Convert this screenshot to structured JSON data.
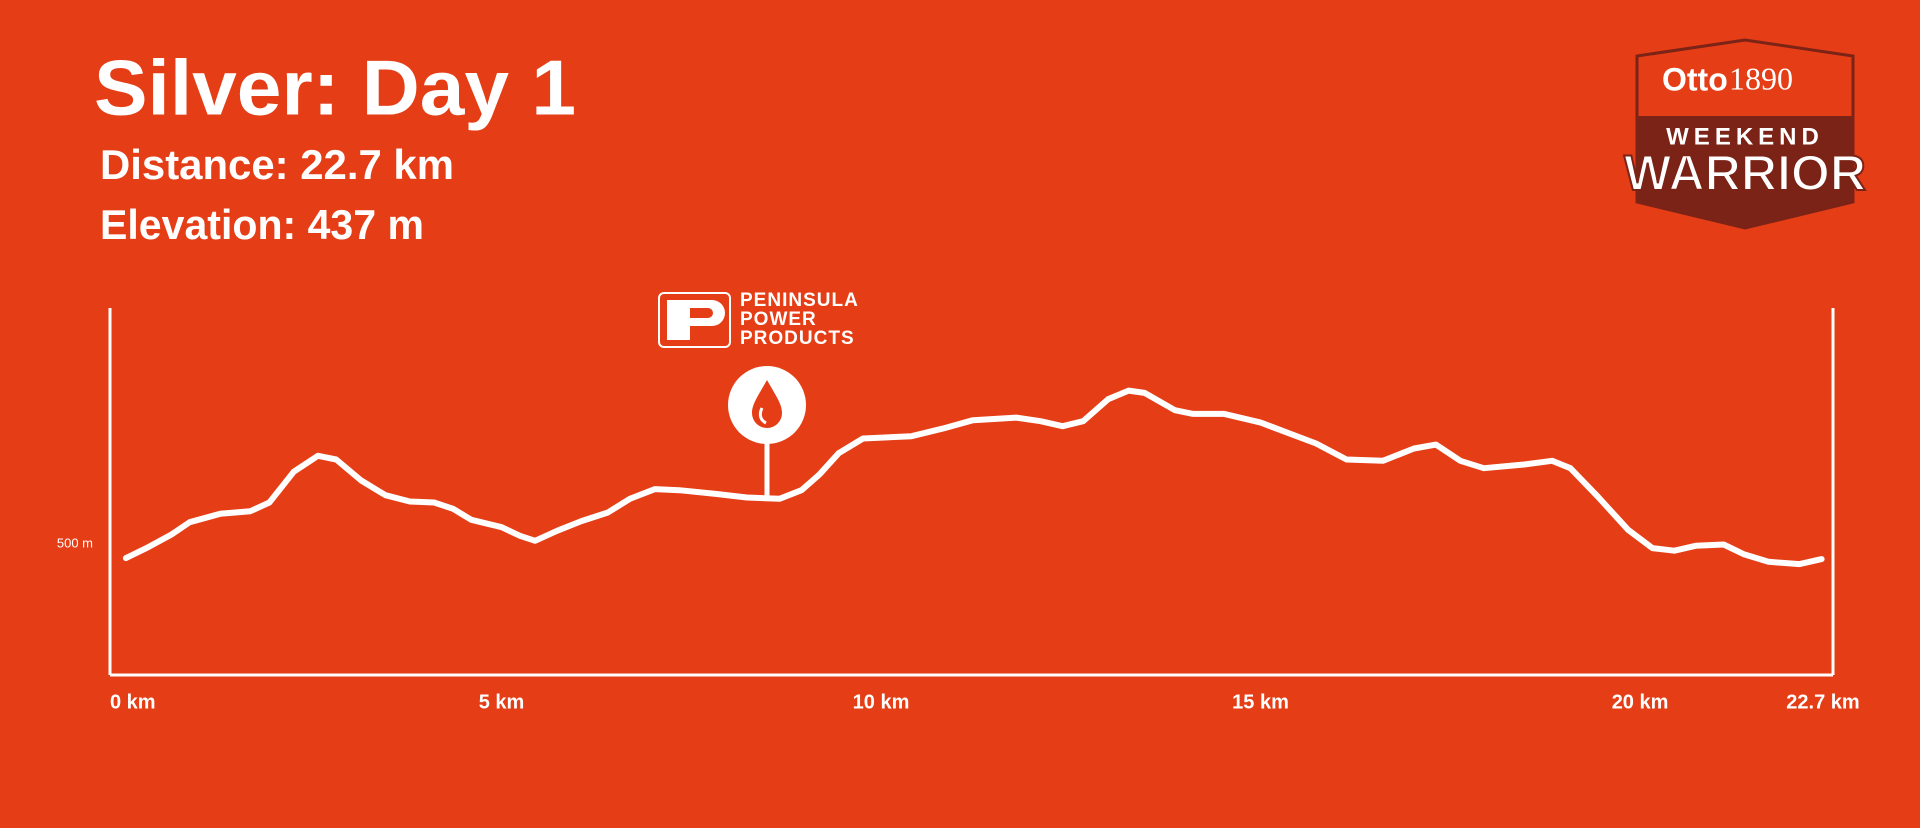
{
  "chart_data": {
    "type": "line",
    "title": "Silver: Day 1",
    "annotations": [
      "Distance: 22.7 km",
      "Elevation: 437 m"
    ],
    "x": [
      0.21,
      0.48,
      0.81,
      1.05,
      1.45,
      1.85,
      2.1,
      2.42,
      2.74,
      2.98,
      3.31,
      3.63,
      3.95,
      4.27,
      4.52,
      4.76,
      5.16,
      5.4,
      5.6,
      5.89,
      6.21,
      6.56,
      6.85,
      7.18,
      7.5,
      7.98,
      8.39,
      8.82,
      9.11,
      9.35,
      9.6,
      9.92,
      10.56,
      10.97,
      11.37,
      11.94,
      12.26,
      12.55,
      12.82,
      13.15,
      13.42,
      13.63,
      14.03,
      14.27,
      14.68,
      15.16,
      15.89,
      16.29,
      16.77,
      17.18,
      17.47,
      17.79,
      18.1,
      18.63,
      19.0,
      19.24,
      19.6,
      20.0,
      20.32,
      20.61,
      20.89,
      21.26,
      21.53,
      21.85,
      22.26,
      22.55
    ],
    "series": [
      {
        "color": "#ffffff",
        "values": [
          446,
          484,
          536,
          583,
          615,
          625,
          658,
          775,
          836,
          822,
          742,
          686,
          662,
          658,
          634,
          592,
          564,
          531,
          512,
          550,
          587,
          620,
          672,
          709,
          705,
          691,
          677,
          672,
          705,
          766,
          846,
          902,
          911,
          940,
          972,
          982,
          968,
          949,
          968,
          1052,
          1085,
          1076,
          1010,
          996,
          996,
          963,
          883,
          822,
          817,
          864,
          879,
          817,
          789,
          803,
          817,
          789,
          681,
          554,
          484,
          474,
          493,
          498,
          460,
          432,
          423,
          442
        ]
      }
    ],
    "xlim": [
      0,
      22.7
    ],
    "xticks": [
      {
        "value": 0,
        "label": "0 km"
      },
      {
        "value": 5,
        "label": "5 km"
      },
      {
        "value": 10,
        "label": "10 km"
      },
      {
        "value": 15,
        "label": "15 km"
      },
      {
        "value": 20,
        "label": "20 km"
      },
      {
        "value": 22.7,
        "label": "22.7 km"
      }
    ],
    "ylim": [
      0,
      1400
    ],
    "yticks": [
      {
        "value": 500,
        "label": "500 m"
      }
    ],
    "grid": false
  },
  "logos": {
    "sponsor": [
      "PENINSULA",
      "POWER",
      "PRODUCTS"
    ],
    "brand": "Otto",
    "brand_year": "1890",
    "event_top": "WEEKEND",
    "event_main": "WARRIOR"
  }
}
